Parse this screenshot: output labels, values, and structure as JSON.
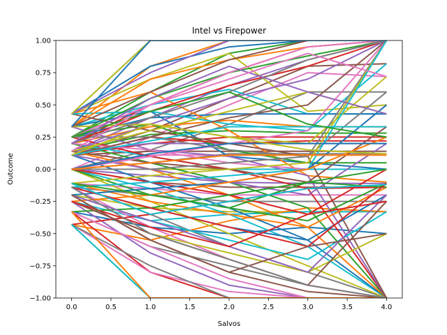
{
  "chart_data": {
    "type": "line",
    "title": "Intel vs Firepower",
    "xlabel": "Salvos",
    "ylabel": "Outcome",
    "xlim": [
      -0.2,
      4.2
    ],
    "ylim": [
      -1.0,
      1.0
    ],
    "x_ticks": [
      0.0,
      0.5,
      1.0,
      1.5,
      2.0,
      2.5,
      3.0,
      3.5,
      4.0
    ],
    "x_tick_labels": [
      "0.0",
      "0.5",
      "1.0",
      "1.5",
      "2.0",
      "2.5",
      "3.0",
      "3.5",
      "4.0"
    ],
    "y_ticks": [
      -1.0,
      -0.75,
      -0.5,
      -0.25,
      0.0,
      0.25,
      0.5,
      0.75,
      1.0
    ],
    "y_tick_labels": [
      "−1.00",
      "−0.75",
      "−0.50",
      "−0.25",
      "0.00",
      "0.25",
      "0.50",
      "0.75",
      "1.00"
    ],
    "grid": false,
    "legend": "none",
    "x": [
      0,
      1,
      2,
      3,
      4
    ],
    "colors": [
      "#1f77b4",
      "#ff7f0e",
      "#2ca02c",
      "#d62728",
      "#9467bd",
      "#8c564b",
      "#e377c2",
      "#7f7f7f",
      "#bcbd22",
      "#17becf"
    ],
    "series": [
      {
        "values": [
          0.43,
          1.0,
          1.0,
          1.0,
          1.0
        ]
      },
      {
        "values": [
          0.33,
          0.8,
          1.0,
          1.0,
          1.0
        ]
      },
      {
        "values": [
          0.25,
          0.6,
          0.9,
          1.0,
          1.0
        ]
      },
      {
        "values": [
          0.2,
          0.5,
          0.75,
          0.95,
          1.0
        ]
      },
      {
        "values": [
          0.14,
          0.4,
          0.65,
          0.85,
          1.0
        ]
      },
      {
        "values": [
          0.11,
          0.3,
          0.55,
          0.8,
          0.82
        ]
      },
      {
        "values": [
          0.0,
          0.25,
          0.5,
          0.75,
          0.72
        ]
      },
      {
        "values": [
          0.0,
          0.15,
          0.35,
          0.6,
          0.6
        ]
      },
      {
        "values": [
          0.43,
          0.7,
          0.9,
          0.45,
          0.5
        ]
      },
      {
        "values": [
          0.33,
          0.5,
          0.62,
          0.43,
          0.43
        ]
      },
      {
        "values": [
          0.25,
          0.4,
          0.43,
          0.43,
          0.43
        ]
      },
      {
        "values": [
          0.2,
          0.33,
          0.38,
          0.33,
          0.33
        ]
      },
      {
        "values": [
          0.14,
          0.27,
          0.3,
          0.28,
          0.28
        ]
      },
      {
        "values": [
          0.11,
          0.2,
          0.25,
          0.25,
          0.25
        ]
      },
      {
        "values": [
          0.14,
          0.2,
          0.2,
          0.2,
          0.2
        ]
      },
      {
        "values": [
          0.11,
          0.14,
          0.14,
          0.14,
          0.14
        ]
      },
      {
        "values": [
          0.0,
          0.11,
          0.11,
          0.11,
          0.11
        ]
      },
      {
        "values": [
          0.0,
          0.05,
          0.12,
          0.12,
          0.12
        ]
      },
      {
        "values": [
          0.0,
          0.0,
          0.0,
          0.0,
          0.0
        ]
      },
      {
        "values": [
          0.2,
          0.1,
          0.0,
          0.0,
          0.0
        ]
      },
      {
        "values": [
          0.33,
          0.45,
          0.1,
          0.05,
          0.0
        ]
      },
      {
        "values": [
          0.43,
          0.6,
          0.3,
          -0.05,
          -0.1
        ]
      },
      {
        "values": [
          0.25,
          0.35,
          0.15,
          0.05,
          0.05
        ]
      },
      {
        "values": [
          0.11,
          0.25,
          0.2,
          0.22,
          0.22
        ]
      },
      {
        "values": [
          0.0,
          -0.05,
          -0.1,
          -0.11,
          -0.11
        ]
      },
      {
        "values": [
          0.0,
          -0.1,
          -0.14,
          -0.14,
          -0.14
        ]
      },
      {
        "values": [
          -0.11,
          -0.15,
          -0.2,
          -0.2,
          -0.2
        ]
      },
      {
        "values": [
          -0.14,
          -0.2,
          -0.25,
          -0.25,
          -0.25
        ]
      },
      {
        "values": [
          -0.2,
          -0.3,
          -0.33,
          -0.33,
          -0.33
        ]
      },
      {
        "values": [
          -0.25,
          -0.4,
          -0.35,
          -0.33,
          -0.33
        ]
      },
      {
        "values": [
          -0.33,
          -0.45,
          -0.5,
          -0.45,
          -0.5
        ]
      },
      {
        "values": [
          -0.43,
          -0.55,
          -0.4,
          -0.3,
          -0.33
        ]
      },
      {
        "values": [
          -0.43,
          -1.0,
          -1.0,
          -1.0,
          -1.0
        ]
      },
      {
        "values": [
          -0.33,
          -0.8,
          -1.0,
          -1.0,
          -1.0
        ]
      },
      {
        "values": [
          -0.25,
          -0.65,
          -0.9,
          -1.0,
          -1.0
        ]
      },
      {
        "values": [
          -0.2,
          -0.55,
          -0.8,
          -0.95,
          -1.0
        ]
      },
      {
        "values": [
          -0.14,
          -0.45,
          -0.7,
          -0.9,
          -1.0
        ]
      },
      {
        "values": [
          -0.11,
          -0.35,
          -0.6,
          -0.8,
          -1.0
        ]
      },
      {
        "values": [
          0.0,
          -0.25,
          -0.5,
          -0.75,
          -1.0
        ]
      },
      {
        "values": [
          0.0,
          -0.15,
          -0.35,
          -0.6,
          -1.0
        ]
      },
      {
        "values": [
          0.11,
          -0.1,
          -0.3,
          -0.55,
          -1.0
        ]
      },
      {
        "values": [
          0.14,
          0.0,
          -0.2,
          -0.45,
          -1.0
        ]
      },
      {
        "values": [
          0.2,
          0.05,
          -0.1,
          -0.3,
          -1.0
        ]
      },
      {
        "values": [
          0.25,
          0.1,
          0.0,
          -0.15,
          -1.0
        ]
      },
      {
        "values": [
          0.33,
          0.15,
          0.1,
          -0.05,
          -1.0
        ]
      },
      {
        "values": [
          0.43,
          0.3,
          0.2,
          0.1,
          -1.0
        ]
      },
      {
        "values": [
          -0.43,
          -0.8,
          -0.95,
          -1.0,
          -1.0
        ]
      },
      {
        "values": [
          -0.33,
          -0.6,
          -0.75,
          -0.9,
          -1.0
        ]
      },
      {
        "values": [
          -0.25,
          -0.5,
          -0.65,
          -0.8,
          -0.5
        ]
      },
      {
        "values": [
          -0.2,
          -0.4,
          -0.55,
          -0.7,
          -0.33
        ]
      },
      {
        "values": [
          -0.14,
          -0.3,
          -0.45,
          -0.55,
          -0.2
        ]
      },
      {
        "values": [
          -0.11,
          -0.25,
          -0.35,
          -0.45,
          -0.14
        ]
      },
      {
        "values": [
          0.0,
          -0.2,
          -0.3,
          -0.4,
          -0.11
        ]
      },
      {
        "values": [
          0.0,
          -0.1,
          -0.2,
          -0.35,
          0.0
        ]
      },
      {
        "values": [
          0.11,
          0.0,
          -0.1,
          -0.2,
          0.2
        ]
      },
      {
        "values": [
          0.14,
          0.05,
          0.0,
          -0.1,
          0.33
        ]
      },
      {
        "values": [
          0.2,
          0.15,
          0.05,
          0.0,
          0.5
        ]
      },
      {
        "values": [
          0.25,
          0.25,
          0.15,
          0.1,
          0.6
        ]
      },
      {
        "values": [
          0.33,
          0.35,
          0.25,
          0.2,
          0.72
        ]
      },
      {
        "values": [
          0.43,
          0.45,
          0.35,
          0.3,
          0.82
        ]
      },
      {
        "values": [
          0.43,
          0.8,
          0.95,
          1.0,
          1.0
        ]
      },
      {
        "values": [
          0.33,
          0.7,
          0.85,
          0.95,
          1.0
        ]
      },
      {
        "values": [
          0.25,
          0.55,
          0.75,
          0.88,
          1.0
        ]
      },
      {
        "values": [
          0.2,
          0.45,
          0.65,
          0.8,
          1.0
        ]
      },
      {
        "values": [
          0.14,
          0.35,
          0.55,
          0.7,
          1.0
        ]
      },
      {
        "values": [
          0.11,
          0.25,
          0.4,
          0.5,
          1.0
        ]
      },
      {
        "values": [
          0.0,
          0.1,
          0.2,
          0.3,
          1.0
        ]
      },
      {
        "values": [
          0.0,
          0.0,
          0.05,
          0.1,
          1.0
        ]
      },
      {
        "values": [
          -0.11,
          -0.05,
          0.0,
          0.05,
          1.0
        ]
      },
      {
        "values": [
          -0.14,
          -0.1,
          -0.05,
          0.0,
          1.0
        ]
      },
      {
        "values": [
          -0.2,
          -0.15,
          -0.1,
          0.0,
          0.5
        ]
      },
      {
        "values": [
          -0.25,
          -0.2,
          -0.1,
          0.0,
          0.25
        ]
      },
      {
        "values": [
          -0.33,
          -0.3,
          -0.2,
          -0.1,
          0.0
        ]
      },
      {
        "values": [
          -0.43,
          -0.35,
          -0.25,
          -0.15,
          -0.14
        ]
      },
      {
        "values": [
          0.43,
          0.75,
          1.0,
          1.0,
          1.0
        ]
      },
      {
        "values": [
          0.33,
          0.6,
          0.85,
          1.0,
          1.0
        ]
      },
      {
        "values": [
          0.25,
          0.5,
          0.75,
          0.95,
          1.0
        ]
      },
      {
        "values": [
          0.2,
          0.4,
          0.6,
          0.85,
          1.0
        ]
      },
      {
        "values": [
          0.14,
          0.3,
          0.45,
          0.6,
          0.43
        ]
      },
      {
        "values": [
          0.11,
          0.22,
          0.33,
          0.33,
          0.33
        ]
      },
      {
        "values": [
          0.0,
          0.12,
          0.2,
          0.2,
          0.2
        ]
      },
      {
        "values": [
          0.0,
          0.05,
          0.11,
          0.11,
          0.11
        ]
      },
      {
        "values": [
          -0.11,
          -0.2,
          -0.3,
          -0.1,
          -0.14
        ]
      },
      {
        "values": [
          -0.14,
          -0.3,
          -0.45,
          -0.6,
          -0.11
        ]
      },
      {
        "values": [
          -0.2,
          -0.4,
          -0.6,
          -0.8,
          -0.2
        ]
      },
      {
        "values": [
          -0.25,
          -0.5,
          -0.7,
          -0.9,
          -0.25
        ]
      },
      {
        "values": [
          -0.33,
          -0.6,
          -0.85,
          -1.0,
          -1.0
        ]
      },
      {
        "values": [
          -0.43,
          -0.75,
          -1.0,
          -1.0,
          -1.0
        ]
      },
      {
        "values": [
          0.43,
          1.0,
          1.0,
          1.0,
          1.0
        ]
      },
      {
        "values": [
          -0.43,
          -1.0,
          -1.0,
          -1.0,
          -1.0
        ]
      },
      {
        "values": [
          0.33,
          1.0,
          1.0,
          1.0,
          1.0
        ]
      },
      {
        "values": [
          -0.33,
          -1.0,
          -1.0,
          -1.0,
          -1.0
        ]
      },
      {
        "values": [
          0.25,
          0.45,
          0.6,
          0.35,
          0.25
        ]
      },
      {
        "values": [
          -0.25,
          -0.45,
          -0.6,
          -0.35,
          -0.25
        ]
      },
      {
        "values": [
          0.2,
          0.55,
          0.8,
          0.6,
          0.43
        ]
      },
      {
        "values": [
          -0.2,
          -0.55,
          -0.8,
          -0.6,
          -0.5
        ]
      },
      {
        "values": [
          0.14,
          0.5,
          0.7,
          0.9,
          0.72
        ]
      },
      {
        "values": [
          -0.14,
          -0.5,
          -0.7,
          -0.9,
          -1.0
        ]
      },
      {
        "values": [
          0.11,
          0.35,
          0.25,
          0.15,
          0.12
        ]
      },
      {
        "values": [
          -0.11,
          -0.35,
          -0.25,
          -0.15,
          -0.12
        ]
      }
    ]
  }
}
